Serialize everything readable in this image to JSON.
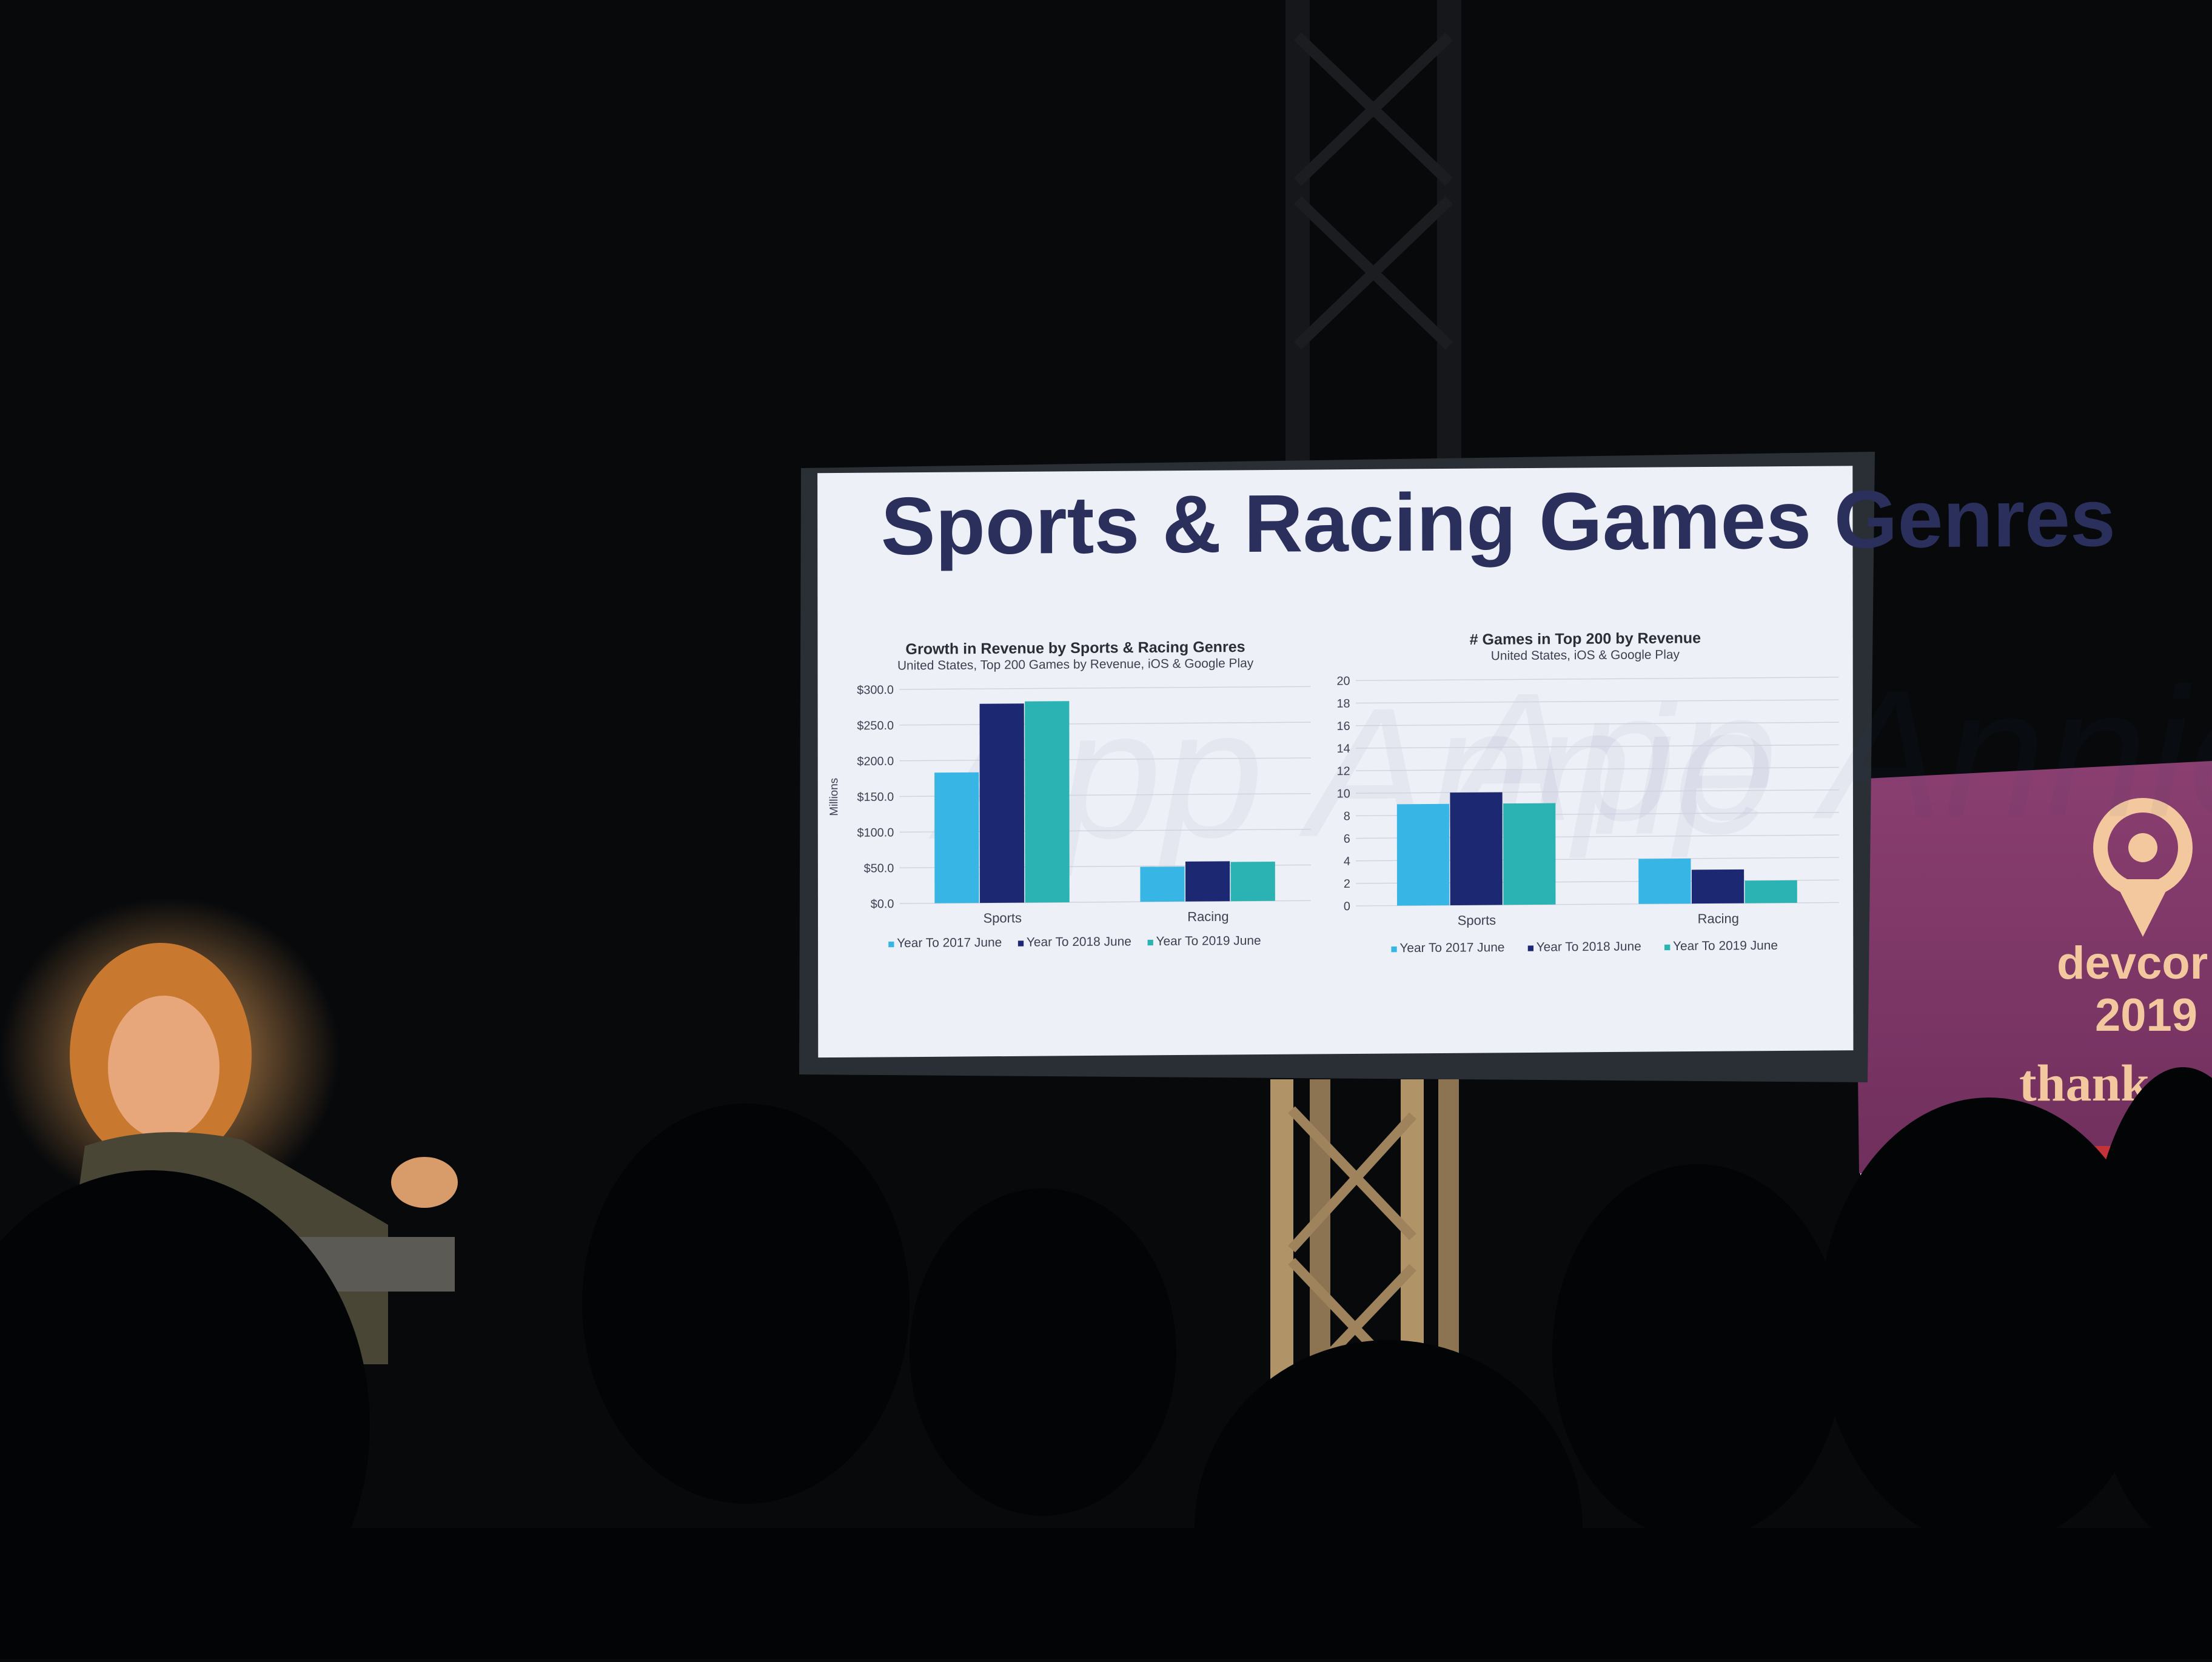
{
  "slide": {
    "title": "Sports & Racing Games Genres",
    "watermark": "App Annie"
  },
  "chart_data": [
    {
      "type": "bar",
      "title": "Growth in Revenue by Sports & Racing Genres",
      "subtitle": "United States, Top 200 Games by Revenue, iOS &  Google Play",
      "ylabel": "Millions",
      "xlabel": "",
      "categories": [
        "Sports",
        "Racing"
      ],
      "series": [
        {
          "name": "Year To 2017 June",
          "values": [
            183,
            49
          ]
        },
        {
          "name": "Year To 2018 June",
          "values": [
            279,
            56
          ]
        },
        {
          "name": "Year To 2019 June",
          "values": [
            282,
            55
          ]
        }
      ],
      "ylim": [
        0,
        300
      ],
      "yticks": [
        "$300.0",
        "$250.0",
        "$200.0",
        "$150.0",
        "$100.0",
        "$50.0",
        "$0.0"
      ],
      "grid": true,
      "legend": "bottom",
      "colors": [
        "#37b6e6",
        "#1c2872",
        "#2bb3b4"
      ]
    },
    {
      "type": "bar",
      "title": "# Games in Top 200 by Revenue",
      "subtitle": "United States, iOS &  Google Play",
      "ylabel": "",
      "xlabel": "",
      "categories": [
        "Sports",
        "Racing"
      ],
      "series": [
        {
          "name": "Year To 2017 June",
          "values": [
            9,
            4
          ]
        },
        {
          "name": "Year To 2018 June",
          "values": [
            10,
            3
          ]
        },
        {
          "name": "Year To 2019 June",
          "values": [
            9,
            2
          ]
        }
      ],
      "ylim": [
        0,
        20
      ],
      "yticks": [
        "20",
        "18",
        "16",
        "14",
        "12",
        "10",
        "8",
        "6",
        "4",
        "2",
        "0"
      ],
      "grid": true,
      "legend": "bottom",
      "colors": [
        "#37b6e6",
        "#1c2872",
        "#2bb3b4"
      ]
    }
  ],
  "banner": {
    "brand": "devcor",
    "year": "2019",
    "message": "thank y"
  }
}
